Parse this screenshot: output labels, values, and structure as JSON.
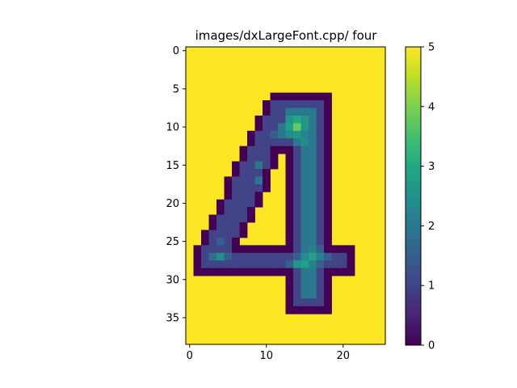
{
  "chart_data": {
    "type": "heatmap",
    "title": "images/dxLargeFont.cpp/ four",
    "xlabel": "",
    "ylabel": "",
    "colormap": "viridis",
    "background_value": 5,
    "value_range": [
      0,
      5
    ],
    "n_rows": 39,
    "n_cols": 26,
    "x_ticks": [
      0,
      10,
      20
    ],
    "y_ticks": [
      0,
      5,
      10,
      15,
      20,
      25,
      30,
      35
    ],
    "colorbar_ticks": [
      0,
      1,
      2,
      3,
      4,
      5
    ],
    "cells": [
      [
        6,
        11,
        0
      ],
      [
        6,
        12,
        0
      ],
      [
        6,
        13,
        0
      ],
      [
        6,
        14,
        0
      ],
      [
        6,
        15,
        0
      ],
      [
        6,
        16,
        0
      ],
      [
        6,
        17,
        0
      ],
      [
        6,
        18,
        0
      ],
      [
        7,
        10,
        0
      ],
      [
        7,
        11,
        1
      ],
      [
        7,
        12,
        1
      ],
      [
        7,
        13,
        1
      ],
      [
        7,
        14,
        1
      ],
      [
        7,
        15,
        1
      ],
      [
        7,
        16,
        1
      ],
      [
        7,
        17,
        1
      ],
      [
        7,
        18,
        0
      ],
      [
        8,
        10,
        0
      ],
      [
        8,
        11,
        1
      ],
      [
        8,
        12,
        1
      ],
      [
        8,
        13,
        2
      ],
      [
        8,
        14,
        2
      ],
      [
        8,
        15,
        2
      ],
      [
        8,
        16,
        2
      ],
      [
        8,
        17,
        1
      ],
      [
        8,
        18,
        0
      ],
      [
        9,
        9,
        0
      ],
      [
        9,
        10,
        1
      ],
      [
        9,
        11,
        1
      ],
      [
        9,
        12,
        1
      ],
      [
        9,
        13,
        2.6
      ],
      [
        9,
        14,
        3
      ],
      [
        9,
        15,
        2.6
      ],
      [
        9,
        16,
        2
      ],
      [
        9,
        17,
        1
      ],
      [
        9,
        18,
        0
      ],
      [
        10,
        9,
        0
      ],
      [
        10,
        10,
        1
      ],
      [
        10,
        11,
        1
      ],
      [
        10,
        12,
        2
      ],
      [
        10,
        13,
        2.8
      ],
      [
        10,
        14,
        3.8
      ],
      [
        10,
        15,
        2.6
      ],
      [
        10,
        16,
        2
      ],
      [
        10,
        17,
        1
      ],
      [
        10,
        18,
        0
      ],
      [
        11,
        8,
        0
      ],
      [
        11,
        9,
        1
      ],
      [
        11,
        10,
        1
      ],
      [
        11,
        11,
        1.5
      ],
      [
        11,
        12,
        2
      ],
      [
        11,
        13,
        2.4
      ],
      [
        11,
        14,
        2.6
      ],
      [
        11,
        15,
        2.2
      ],
      [
        11,
        16,
        2
      ],
      [
        11,
        17,
        1
      ],
      [
        11,
        18,
        0
      ],
      [
        12,
        8,
        0
      ],
      [
        12,
        9,
        1
      ],
      [
        12,
        10,
        1
      ],
      [
        12,
        11,
        1
      ],
      [
        12,
        12,
        1
      ],
      [
        12,
        13,
        1
      ],
      [
        12,
        14,
        2
      ],
      [
        12,
        15,
        2.4
      ],
      [
        12,
        16,
        2
      ],
      [
        12,
        17,
        1
      ],
      [
        12,
        18,
        0
      ],
      [
        13,
        7,
        0
      ],
      [
        13,
        8,
        1
      ],
      [
        13,
        9,
        1
      ],
      [
        13,
        10,
        1
      ],
      [
        13,
        11,
        0
      ],
      [
        13,
        12,
        0
      ],
      [
        13,
        13,
        0
      ],
      [
        13,
        14,
        1
      ],
      [
        13,
        15,
        2
      ],
      [
        13,
        16,
        2
      ],
      [
        13,
        17,
        1
      ],
      [
        13,
        18,
        0
      ],
      [
        14,
        7,
        0
      ],
      [
        14,
        8,
        1
      ],
      [
        14,
        9,
        1
      ],
      [
        14,
        10,
        1
      ],
      [
        14,
        11,
        0
      ],
      [
        14,
        13,
        0
      ],
      [
        14,
        14,
        1
      ],
      [
        14,
        15,
        2
      ],
      [
        14,
        16,
        2
      ],
      [
        14,
        17,
        1
      ],
      [
        14,
        18,
        0
      ],
      [
        15,
        6,
        0
      ],
      [
        15,
        7,
        1
      ],
      [
        15,
        8,
        1
      ],
      [
        15,
        9,
        2
      ],
      [
        15,
        10,
        1
      ],
      [
        15,
        11,
        0
      ],
      [
        15,
        13,
        0
      ],
      [
        15,
        14,
        1
      ],
      [
        15,
        15,
        2
      ],
      [
        15,
        16,
        2
      ],
      [
        15,
        17,
        1
      ],
      [
        15,
        18,
        0
      ],
      [
        16,
        6,
        0
      ],
      [
        16,
        7,
        1
      ],
      [
        16,
        8,
        1
      ],
      [
        16,
        9,
        1
      ],
      [
        16,
        10,
        0
      ],
      [
        16,
        13,
        0
      ],
      [
        16,
        14,
        1
      ],
      [
        16,
        15,
        2
      ],
      [
        16,
        16,
        2
      ],
      [
        16,
        17,
        1
      ],
      [
        16,
        18,
        0
      ],
      [
        17,
        5,
        0
      ],
      [
        17,
        6,
        1
      ],
      [
        17,
        7,
        1
      ],
      [
        17,
        8,
        1
      ],
      [
        17,
        9,
        2
      ],
      [
        17,
        10,
        0
      ],
      [
        17,
        13,
        0
      ],
      [
        17,
        14,
        1
      ],
      [
        17,
        15,
        2
      ],
      [
        17,
        16,
        2
      ],
      [
        17,
        17,
        1
      ],
      [
        17,
        18,
        0
      ],
      [
        18,
        5,
        0
      ],
      [
        18,
        6,
        1
      ],
      [
        18,
        7,
        1
      ],
      [
        18,
        8,
        1
      ],
      [
        18,
        9,
        1
      ],
      [
        18,
        10,
        0
      ],
      [
        18,
        13,
        0
      ],
      [
        18,
        14,
        1
      ],
      [
        18,
        15,
        2
      ],
      [
        18,
        16,
        2
      ],
      [
        18,
        17,
        1
      ],
      [
        18,
        18,
        0
      ],
      [
        19,
        5,
        0
      ],
      [
        19,
        6,
        1
      ],
      [
        19,
        7,
        1
      ],
      [
        19,
        8,
        1
      ],
      [
        19,
        9,
        0
      ],
      [
        19,
        13,
        0
      ],
      [
        19,
        14,
        1
      ],
      [
        19,
        15,
        2
      ],
      [
        19,
        16,
        2
      ],
      [
        19,
        17,
        1
      ],
      [
        19,
        18,
        0
      ],
      [
        20,
        4,
        0
      ],
      [
        20,
        5,
        1
      ],
      [
        20,
        6,
        1
      ],
      [
        20,
        7,
        1
      ],
      [
        20,
        8,
        1
      ],
      [
        20,
        9,
        0
      ],
      [
        20,
        13,
        0
      ],
      [
        20,
        14,
        1
      ],
      [
        20,
        15,
        2
      ],
      [
        20,
        16,
        2
      ],
      [
        20,
        17,
        1
      ],
      [
        20,
        18,
        0
      ],
      [
        21,
        4,
        0
      ],
      [
        21,
        5,
        1
      ],
      [
        21,
        6,
        1
      ],
      [
        21,
        7,
        1
      ],
      [
        21,
        8,
        0
      ],
      [
        21,
        13,
        0
      ],
      [
        21,
        14,
        1
      ],
      [
        21,
        15,
        2
      ],
      [
        21,
        16,
        2
      ],
      [
        21,
        17,
        1
      ],
      [
        21,
        18,
        0
      ],
      [
        22,
        3,
        0
      ],
      [
        22,
        4,
        1
      ],
      [
        22,
        5,
        1
      ],
      [
        22,
        6,
        1
      ],
      [
        22,
        7,
        1
      ],
      [
        22,
        8,
        0
      ],
      [
        22,
        13,
        0
      ],
      [
        22,
        14,
        1
      ],
      [
        22,
        15,
        2
      ],
      [
        22,
        16,
        2
      ],
      [
        22,
        17,
        1
      ],
      [
        22,
        18,
        0
      ],
      [
        23,
        3,
        0
      ],
      [
        23,
        4,
        1
      ],
      [
        23,
        5,
        1
      ],
      [
        23,
        6,
        1
      ],
      [
        23,
        7,
        0
      ],
      [
        23,
        13,
        0
      ],
      [
        23,
        14,
        1
      ],
      [
        23,
        15,
        2
      ],
      [
        23,
        16,
        2
      ],
      [
        23,
        17,
        1
      ],
      [
        23,
        18,
        0
      ],
      [
        24,
        2,
        0
      ],
      [
        24,
        3,
        1
      ],
      [
        24,
        4,
        1
      ],
      [
        24,
        5,
        1
      ],
      [
        24,
        6,
        1
      ],
      [
        24,
        7,
        0
      ],
      [
        24,
        13,
        0
      ],
      [
        24,
        14,
        1
      ],
      [
        24,
        15,
        2
      ],
      [
        24,
        16,
        2
      ],
      [
        24,
        17,
        1
      ],
      [
        24,
        18,
        0
      ],
      [
        25,
        2,
        0
      ],
      [
        25,
        3,
        1
      ],
      [
        25,
        4,
        1.5
      ],
      [
        25,
        5,
        1
      ],
      [
        25,
        6,
        0
      ],
      [
        25,
        13,
        0
      ],
      [
        25,
        14,
        1
      ],
      [
        25,
        15,
        2
      ],
      [
        25,
        16,
        2
      ],
      [
        25,
        17,
        1
      ],
      [
        25,
        18,
        0
      ],
      [
        26,
        1,
        0
      ],
      [
        26,
        2,
        1
      ],
      [
        26,
        3,
        1
      ],
      [
        26,
        4,
        1
      ],
      [
        26,
        5,
        1
      ],
      [
        26,
        6,
        0
      ],
      [
        26,
        7,
        0
      ],
      [
        26,
        8,
        0
      ],
      [
        26,
        9,
        0
      ],
      [
        26,
        10,
        0
      ],
      [
        26,
        11,
        0
      ],
      [
        26,
        12,
        0
      ],
      [
        26,
        13,
        0
      ],
      [
        26,
        14,
        1
      ],
      [
        26,
        15,
        2
      ],
      [
        26,
        16,
        2.2
      ],
      [
        26,
        17,
        1.5
      ],
      [
        26,
        18,
        0
      ],
      [
        26,
        19,
        0
      ],
      [
        26,
        20,
        0
      ],
      [
        26,
        21,
        0
      ],
      [
        27,
        1,
        0
      ],
      [
        27,
        2,
        1
      ],
      [
        27,
        3,
        1.8
      ],
      [
        27,
        4,
        2.4
      ],
      [
        27,
        5,
        1.5
      ],
      [
        27,
        6,
        1
      ],
      [
        27,
        7,
        1
      ],
      [
        27,
        8,
        1
      ],
      [
        27,
        9,
        1
      ],
      [
        27,
        10,
        1
      ],
      [
        27,
        11,
        1
      ],
      [
        27,
        12,
        1
      ],
      [
        27,
        13,
        1
      ],
      [
        27,
        14,
        1.5
      ],
      [
        27,
        15,
        2.4
      ],
      [
        27,
        16,
        2.8
      ],
      [
        27,
        17,
        2.2
      ],
      [
        27,
        18,
        1.5
      ],
      [
        27,
        19,
        1
      ],
      [
        27,
        20,
        1
      ],
      [
        27,
        21,
        0
      ],
      [
        28,
        1,
        0
      ],
      [
        28,
        2,
        1
      ],
      [
        28,
        3,
        1
      ],
      [
        28,
        4,
        1
      ],
      [
        28,
        5,
        1
      ],
      [
        28,
        6,
        1
      ],
      [
        28,
        7,
        1
      ],
      [
        28,
        8,
        1
      ],
      [
        28,
        9,
        1
      ],
      [
        28,
        10,
        1
      ],
      [
        28,
        11,
        1
      ],
      [
        28,
        12,
        1
      ],
      [
        28,
        13,
        1.5
      ],
      [
        28,
        14,
        2.6
      ],
      [
        28,
        15,
        2.8
      ],
      [
        28,
        16,
        2.2
      ],
      [
        28,
        17,
        1.5
      ],
      [
        28,
        18,
        1
      ],
      [
        28,
        19,
        1
      ],
      [
        28,
        20,
        1
      ],
      [
        28,
        21,
        0
      ],
      [
        29,
        1,
        0
      ],
      [
        29,
        2,
        0
      ],
      [
        29,
        3,
        0
      ],
      [
        29,
        4,
        0
      ],
      [
        29,
        5,
        0
      ],
      [
        29,
        6,
        0
      ],
      [
        29,
        7,
        0
      ],
      [
        29,
        8,
        0
      ],
      [
        29,
        9,
        0
      ],
      [
        29,
        10,
        0
      ],
      [
        29,
        11,
        0
      ],
      [
        29,
        12,
        0
      ],
      [
        29,
        13,
        0
      ],
      [
        29,
        14,
        1
      ],
      [
        29,
        15,
        2
      ],
      [
        29,
        16,
        2
      ],
      [
        29,
        17,
        1
      ],
      [
        29,
        18,
        0
      ],
      [
        29,
        19,
        0
      ],
      [
        29,
        20,
        0
      ],
      [
        29,
        21,
        0
      ],
      [
        30,
        13,
        0
      ],
      [
        30,
        14,
        1
      ],
      [
        30,
        15,
        2
      ],
      [
        30,
        16,
        2
      ],
      [
        30,
        17,
        1
      ],
      [
        30,
        18,
        0
      ],
      [
        31,
        13,
        0
      ],
      [
        31,
        14,
        1
      ],
      [
        31,
        15,
        2
      ],
      [
        31,
        16,
        2
      ],
      [
        31,
        17,
        1
      ],
      [
        31,
        18,
        0
      ],
      [
        32,
        13,
        0
      ],
      [
        32,
        14,
        1
      ],
      [
        32,
        15,
        2
      ],
      [
        32,
        16,
        2
      ],
      [
        32,
        17,
        1
      ],
      [
        32,
        18,
        0
      ],
      [
        33,
        13,
        0
      ],
      [
        33,
        14,
        1
      ],
      [
        33,
        15,
        1
      ],
      [
        33,
        16,
        1
      ],
      [
        33,
        17,
        1
      ],
      [
        33,
        18,
        0
      ],
      [
        34,
        13,
        0
      ],
      [
        34,
        14,
        0
      ],
      [
        34,
        15,
        0
      ],
      [
        34,
        16,
        0
      ],
      [
        34,
        17,
        0
      ],
      [
        34,
        18,
        0
      ]
    ]
  }
}
